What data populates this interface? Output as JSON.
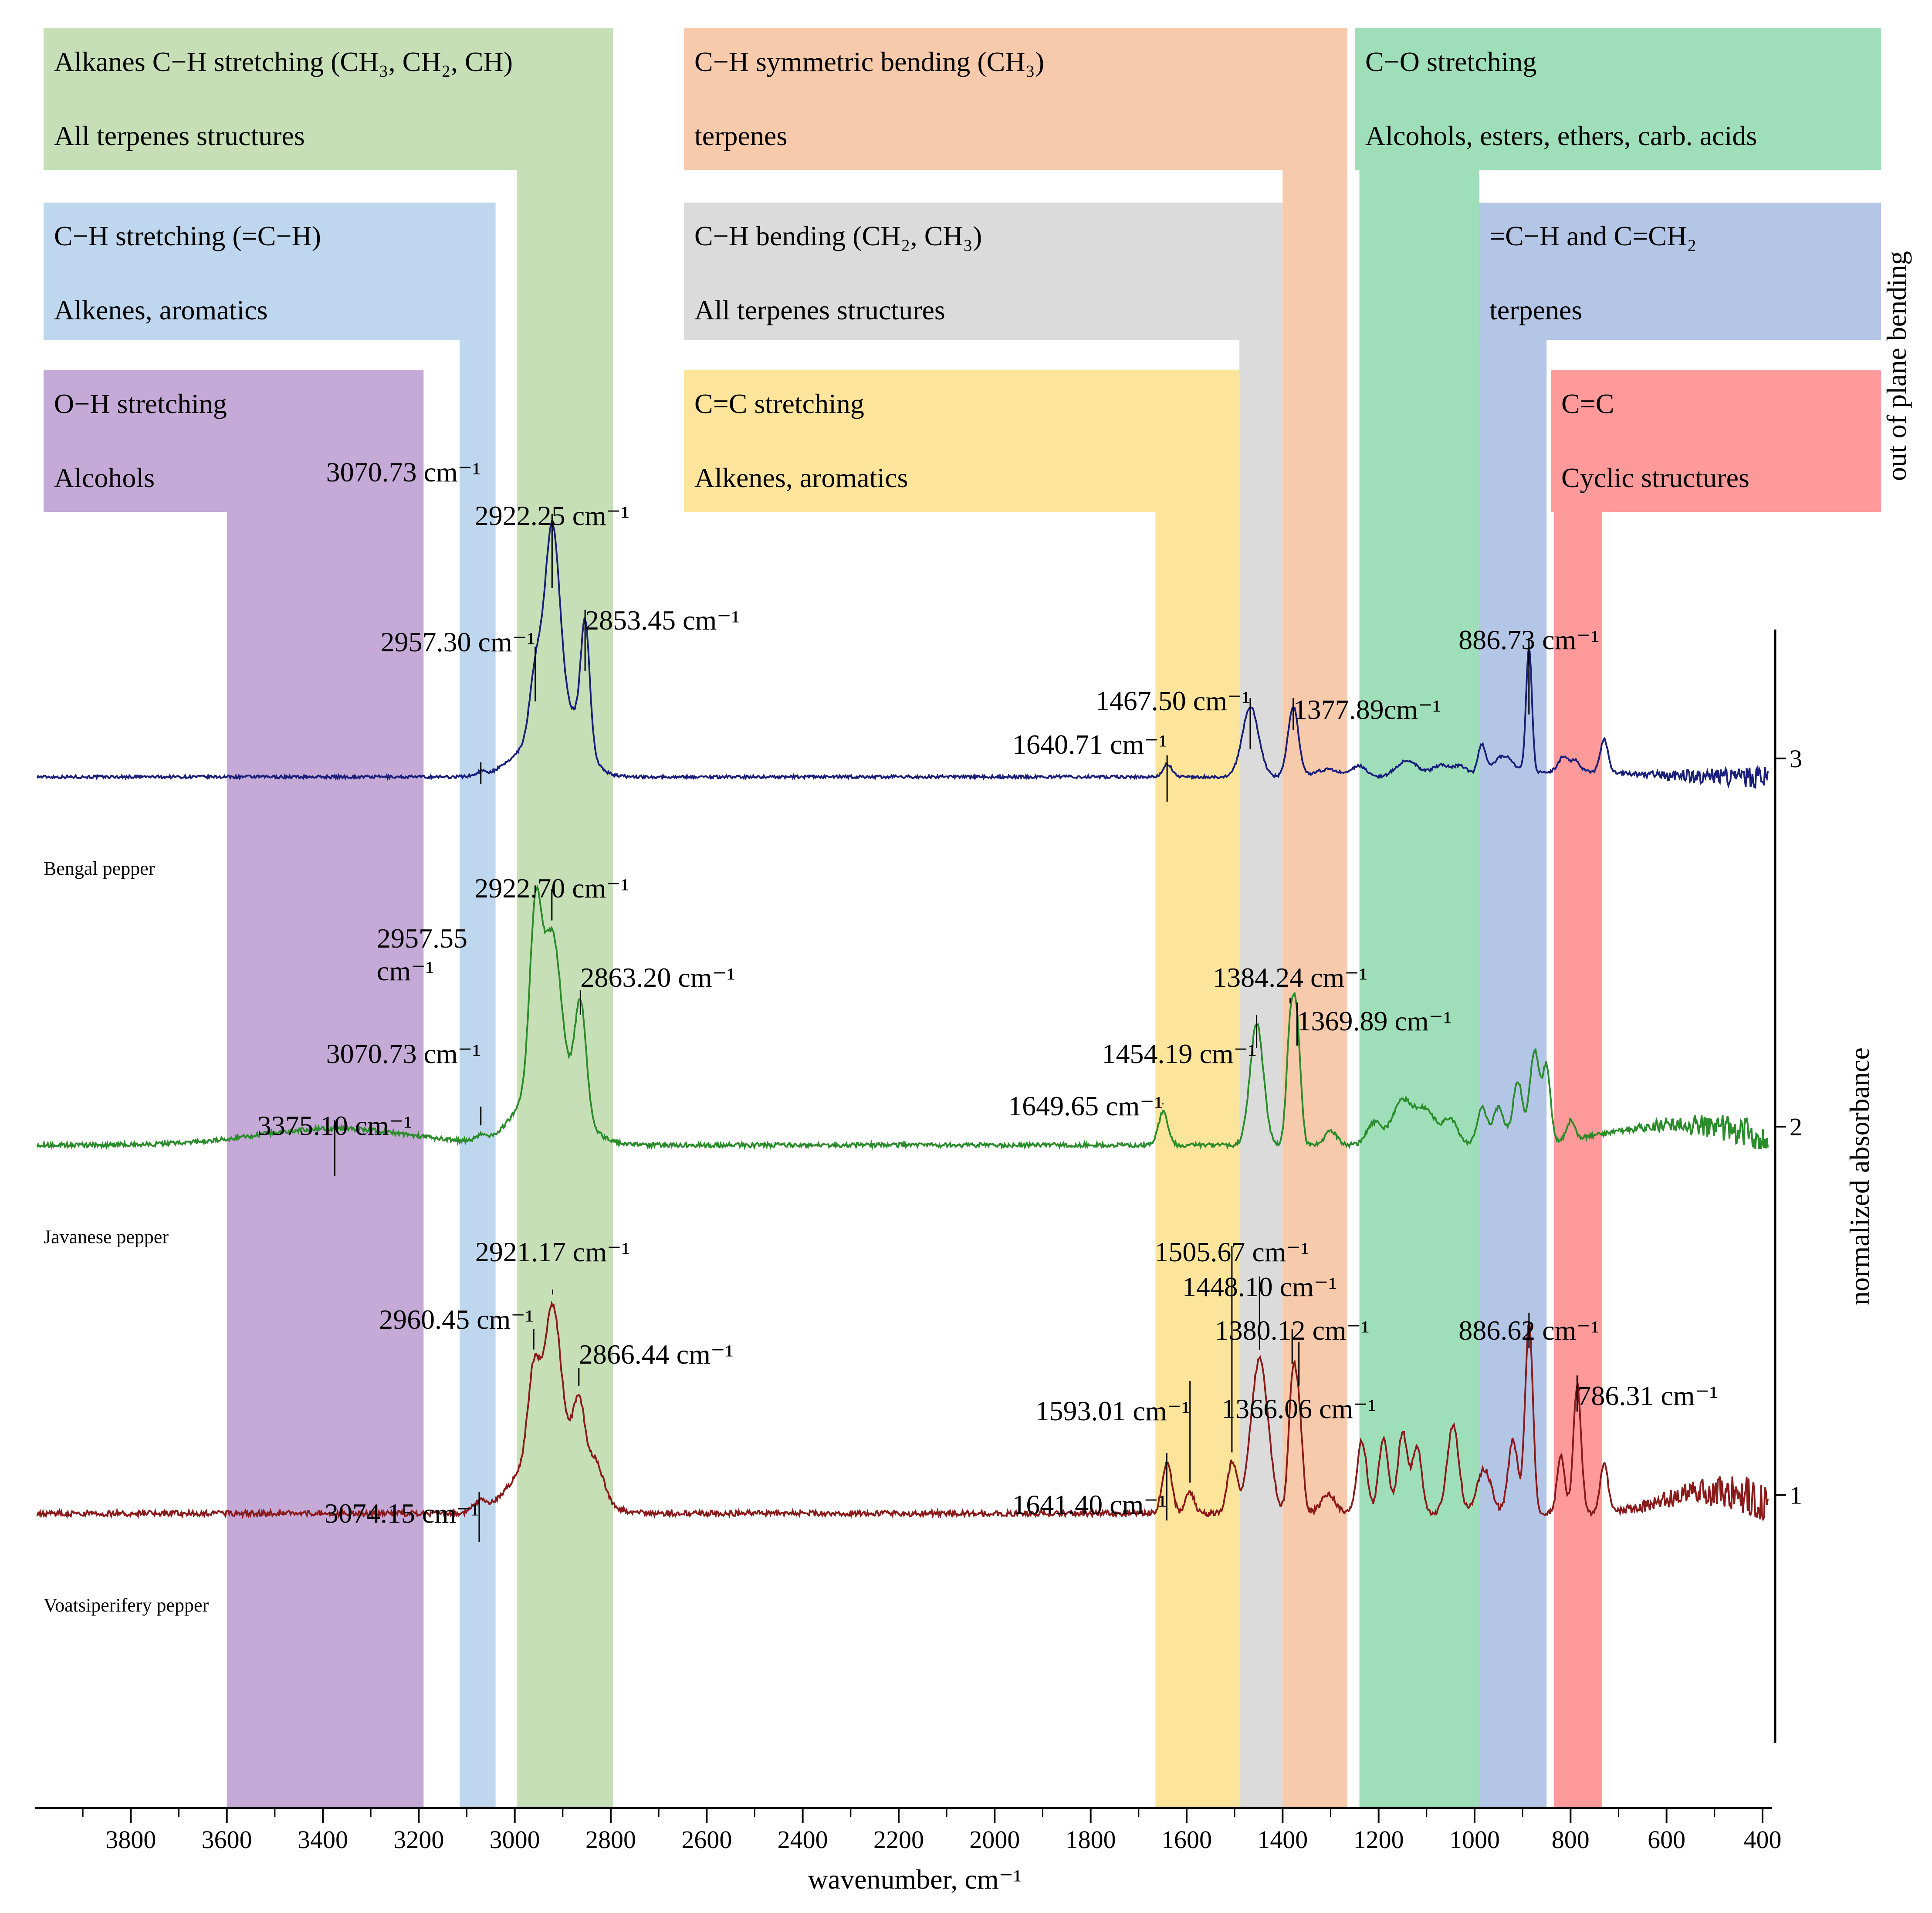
{
  "chart_data": {
    "type": "line",
    "title": "",
    "xlabel": "wavenumber, cm⁻¹",
    "ylabel": "normalized absorbance",
    "xlim": [
      4000,
      380
    ],
    "ylim": [
      0.15,
      3.35
    ],
    "x_ticks": [
      3800,
      3600,
      3400,
      3200,
      3000,
      2800,
      2600,
      2400,
      2200,
      2000,
      1800,
      1600,
      1400,
      1200,
      1000,
      800,
      600,
      400
    ],
    "y_ticks": [
      {
        "value": 1,
        "label": "1"
      },
      {
        "value": 2,
        "label": "2"
      },
      {
        "value": 3,
        "label": "3"
      }
    ],
    "side_label": "out of plane bending",
    "bands": [
      {
        "id": "oh",
        "title": "O−H stretching",
        "sub": "Alcohols",
        "x_from": 3600,
        "x_to": 3190,
        "color": "#c5a9d6",
        "label_row": 2
      },
      {
        "id": "ch-alkene",
        "title": "C−H stretching (=C−H)",
        "sub": "Alkenes, aromatics",
        "x_from": 3115,
        "x_to": 3040,
        "color": "#bed7ee",
        "label_row": 1
      },
      {
        "id": "alkane",
        "title": "Alkanes C−H stretching (CH₃, CH₂, CH)",
        "sub": "All terpenes structures",
        "x_from": 2995,
        "x_to": 2795,
        "color": "#c6dfb6",
        "label_row": 0
      },
      {
        "id": "cc",
        "title": "C=C stretching",
        "sub": "Alkenes, aromatics",
        "x_from": 1665,
        "x_to": 1490,
        "color": "#fde49b",
        "label_row": 2
      },
      {
        "id": "ch-bend",
        "title": "C−H bending (CH₂, CH₃)",
        "sub": "All terpenes structures",
        "x_from": 1490,
        "x_to": 1400,
        "color": "#dbdbdb",
        "label_row": 1
      },
      {
        "id": "ch-sym",
        "title": "C−H symmetric bending (CH₃)",
        "sub": "terpenes",
        "x_from": 1400,
        "x_to": 1265,
        "color": "#f6caab",
        "label_row": 0
      },
      {
        "id": "co",
        "title": "C−O stretching",
        "sub": "Alcohols, esters, ethers, carb. acids",
        "x_from": 1240,
        "x_to": 990,
        "color": "#9edfba",
        "label_row": 0
      },
      {
        "id": "ch2",
        "title": "=C−H and C=CH₂",
        "sub": "terpenes",
        "x_from": 990,
        "x_to": 850,
        "color": "#b4c6e6",
        "label_row": 1
      },
      {
        "id": "ring",
        "title": "C=C",
        "sub": "Cyclic structures",
        "x_from": 835,
        "x_to": 735,
        "color": "#fe9a9a",
        "label_row": 2
      }
    ],
    "series": [
      {
        "name": "Bengal pepper",
        "color": "#1a1f7a",
        "offset": 2.95,
        "peaks": [
          {
            "x": 3070.73,
            "label": "3070.73 cm⁻¹"
          },
          {
            "x": 2957.3,
            "label": "2957.30 cm⁻¹"
          },
          {
            "x": 2922.25,
            "label": "2922.25 cm⁻¹"
          },
          {
            "x": 2853.45,
            "label": "2853.45 cm⁻¹"
          },
          {
            "x": 1640.71,
            "label": "1640.71 cm⁻¹"
          },
          {
            "x": 1467.5,
            "label": "1467.50 cm⁻¹"
          },
          {
            "x": 1377.89,
            "label": "1377.89cm⁻¹"
          },
          {
            "x": 886.73,
            "label": "886.73 cm⁻¹"
          }
        ],
        "components": [
          {
            "c": 3070,
            "h": 0.01,
            "w": 10
          },
          {
            "c": 2957,
            "h": 0.17,
            "w": 12
          },
          {
            "c": 2922,
            "h": 0.56,
            "w": 16
          },
          {
            "c": 2870,
            "h": 0.1,
            "w": 25
          },
          {
            "c": 2853,
            "h": 0.31,
            "w": 9
          },
          {
            "c": 2935,
            "h": 0.12,
            "w": 55
          },
          {
            "c": 1640,
            "h": 0.035,
            "w": 9
          },
          {
            "c": 1467,
            "h": 0.19,
            "w": 17
          },
          {
            "c": 1378,
            "h": 0.19,
            "w": 11
          },
          {
            "c": 1305,
            "h": 0.02,
            "w": 25
          },
          {
            "c": 1240,
            "h": 0.03,
            "w": 15
          },
          {
            "c": 1140,
            "h": 0.045,
            "w": 22
          },
          {
            "c": 1070,
            "h": 0.03,
            "w": 18
          },
          {
            "c": 1030,
            "h": 0.025,
            "w": 15
          },
          {
            "c": 985,
            "h": 0.08,
            "w": 8
          },
          {
            "c": 940,
            "h": 0.05,
            "w": 20
          },
          {
            "c": 886.7,
            "h": 0.34,
            "w": 6
          },
          {
            "c": 815,
            "h": 0.04,
            "w": 10
          },
          {
            "c": 790,
            "h": 0.03,
            "w": 9
          },
          {
            "c": 730,
            "h": 0.09,
            "w": 8
          },
          {
            "c": 800,
            "h": 0.015,
            "w": 120
          }
        ],
        "noise": 0.008
      },
      {
        "name": "Javanese pepper",
        "color": "#2a8c2a",
        "offset": 1.95,
        "peaks": [
          {
            "x": 3375.1,
            "label": "3375.10 cm⁻¹"
          },
          {
            "x": 3070.73,
            "label": "3070.73 cm⁻¹"
          },
          {
            "x": 2957.55,
            "label": "2957.55 cm⁻¹"
          },
          {
            "x": 2922.7,
            "label": "2922.70 cm⁻¹"
          },
          {
            "x": 2863.2,
            "label": "2863.20 cm⁻¹"
          },
          {
            "x": 1649.65,
            "label": "1649.65 cm⁻¹"
          },
          {
            "x": 1454.19,
            "label": "1454.19 cm⁻¹"
          },
          {
            "x": 1384.24,
            "label": "1384.24 cm⁻¹"
          },
          {
            "x": 1369.89,
            "label": "1369.89 cm⁻¹"
          }
        ],
        "components": [
          {
            "c": 3375,
            "h": 0.045,
            "w": 160
          },
          {
            "c": 3070,
            "h": 0.015,
            "w": 10
          },
          {
            "c": 2957,
            "h": 0.45,
            "w": 12
          },
          {
            "c": 2922,
            "h": 0.38,
            "w": 18
          },
          {
            "c": 2863,
            "h": 0.3,
            "w": 12
          },
          {
            "c": 2930,
            "h": 0.2,
            "w": 55
          },
          {
            "c": 1649,
            "h": 0.09,
            "w": 10
          },
          {
            "c": 1454,
            "h": 0.33,
            "w": 14
          },
          {
            "c": 1384,
            "h": 0.3,
            "w": 8
          },
          {
            "c": 1370,
            "h": 0.3,
            "w": 8
          },
          {
            "c": 1300,
            "h": 0.04,
            "w": 12
          },
          {
            "c": 1210,
            "h": 0.06,
            "w": 15
          },
          {
            "c": 1150,
            "h": 0.12,
            "w": 22
          },
          {
            "c": 1100,
            "h": 0.09,
            "w": 20
          },
          {
            "c": 1050,
            "h": 0.07,
            "w": 15
          },
          {
            "c": 985,
            "h": 0.1,
            "w": 10
          },
          {
            "c": 950,
            "h": 0.1,
            "w": 12
          },
          {
            "c": 910,
            "h": 0.17,
            "w": 10
          },
          {
            "c": 875,
            "h": 0.25,
            "w": 10
          },
          {
            "c": 850,
            "h": 0.2,
            "w": 8
          },
          {
            "c": 800,
            "h": 0.05,
            "w": 8
          },
          {
            "c": 570,
            "h": 0.055,
            "w": 150
          }
        ],
        "noise": 0.012
      },
      {
        "name": "Voatsiperifery pepper",
        "color": "#8b1a1a",
        "offset": 0.95,
        "peaks": [
          {
            "x": 3074.15,
            "label": "3074.15 cm⁻¹"
          },
          {
            "x": 2960.45,
            "label": "2960.45 cm⁻¹"
          },
          {
            "x": 2921.17,
            "label": "2921.17 cm⁻¹"
          },
          {
            "x": 2866.44,
            "label": "2866.44 cm⁻¹"
          },
          {
            "x": 1641.4,
            "label": "1641.40 cm⁻¹"
          },
          {
            "x": 1593.01,
            "label": "1593.01 cm⁻¹"
          },
          {
            "x": 1505.67,
            "label": "1505.67 cm⁻¹"
          },
          {
            "x": 1448.1,
            "label": "1448.10 cm⁻¹"
          },
          {
            "x": 1380.12,
            "label": "1380.12 cm⁻¹"
          },
          {
            "x": 1366.06,
            "label": "1366.06 cm⁻¹"
          },
          {
            "x": 886.62,
            "label": "886.62 cm⁻¹"
          },
          {
            "x": 786.31,
            "label": "786.31 cm⁻¹"
          }
        ],
        "components": [
          {
            "c": 3074,
            "h": 0.025,
            "w": 12
          },
          {
            "c": 2960,
            "h": 0.22,
            "w": 12
          },
          {
            "c": 2921,
            "h": 0.35,
            "w": 16
          },
          {
            "c": 2866,
            "h": 0.18,
            "w": 12
          },
          {
            "c": 2830,
            "h": 0.08,
            "w": 15
          },
          {
            "c": 2925,
            "h": 0.22,
            "w": 60
          },
          {
            "c": 1641,
            "h": 0.14,
            "w": 10
          },
          {
            "c": 1593,
            "h": 0.06,
            "w": 9
          },
          {
            "c": 1505,
            "h": 0.14,
            "w": 10
          },
          {
            "c": 1448,
            "h": 0.42,
            "w": 18
          },
          {
            "c": 1380,
            "h": 0.33,
            "w": 8
          },
          {
            "c": 1366,
            "h": 0.25,
            "w": 8
          },
          {
            "c": 1305,
            "h": 0.05,
            "w": 15
          },
          {
            "c": 1235,
            "h": 0.2,
            "w": 10
          },
          {
            "c": 1190,
            "h": 0.2,
            "w": 10
          },
          {
            "c": 1150,
            "h": 0.22,
            "w": 10
          },
          {
            "c": 1120,
            "h": 0.18,
            "w": 10
          },
          {
            "c": 1045,
            "h": 0.24,
            "w": 12
          },
          {
            "c": 980,
            "h": 0.12,
            "w": 15
          },
          {
            "c": 920,
            "h": 0.2,
            "w": 10
          },
          {
            "c": 886.6,
            "h": 0.52,
            "w": 8
          },
          {
            "c": 786,
            "h": 0.35,
            "w": 8
          },
          {
            "c": 820,
            "h": 0.16,
            "w": 8
          },
          {
            "c": 730,
            "h": 0.13,
            "w": 8
          },
          {
            "c": 500,
            "h": 0.06,
            "w": 100
          }
        ],
        "noise": 0.015
      }
    ]
  }
}
